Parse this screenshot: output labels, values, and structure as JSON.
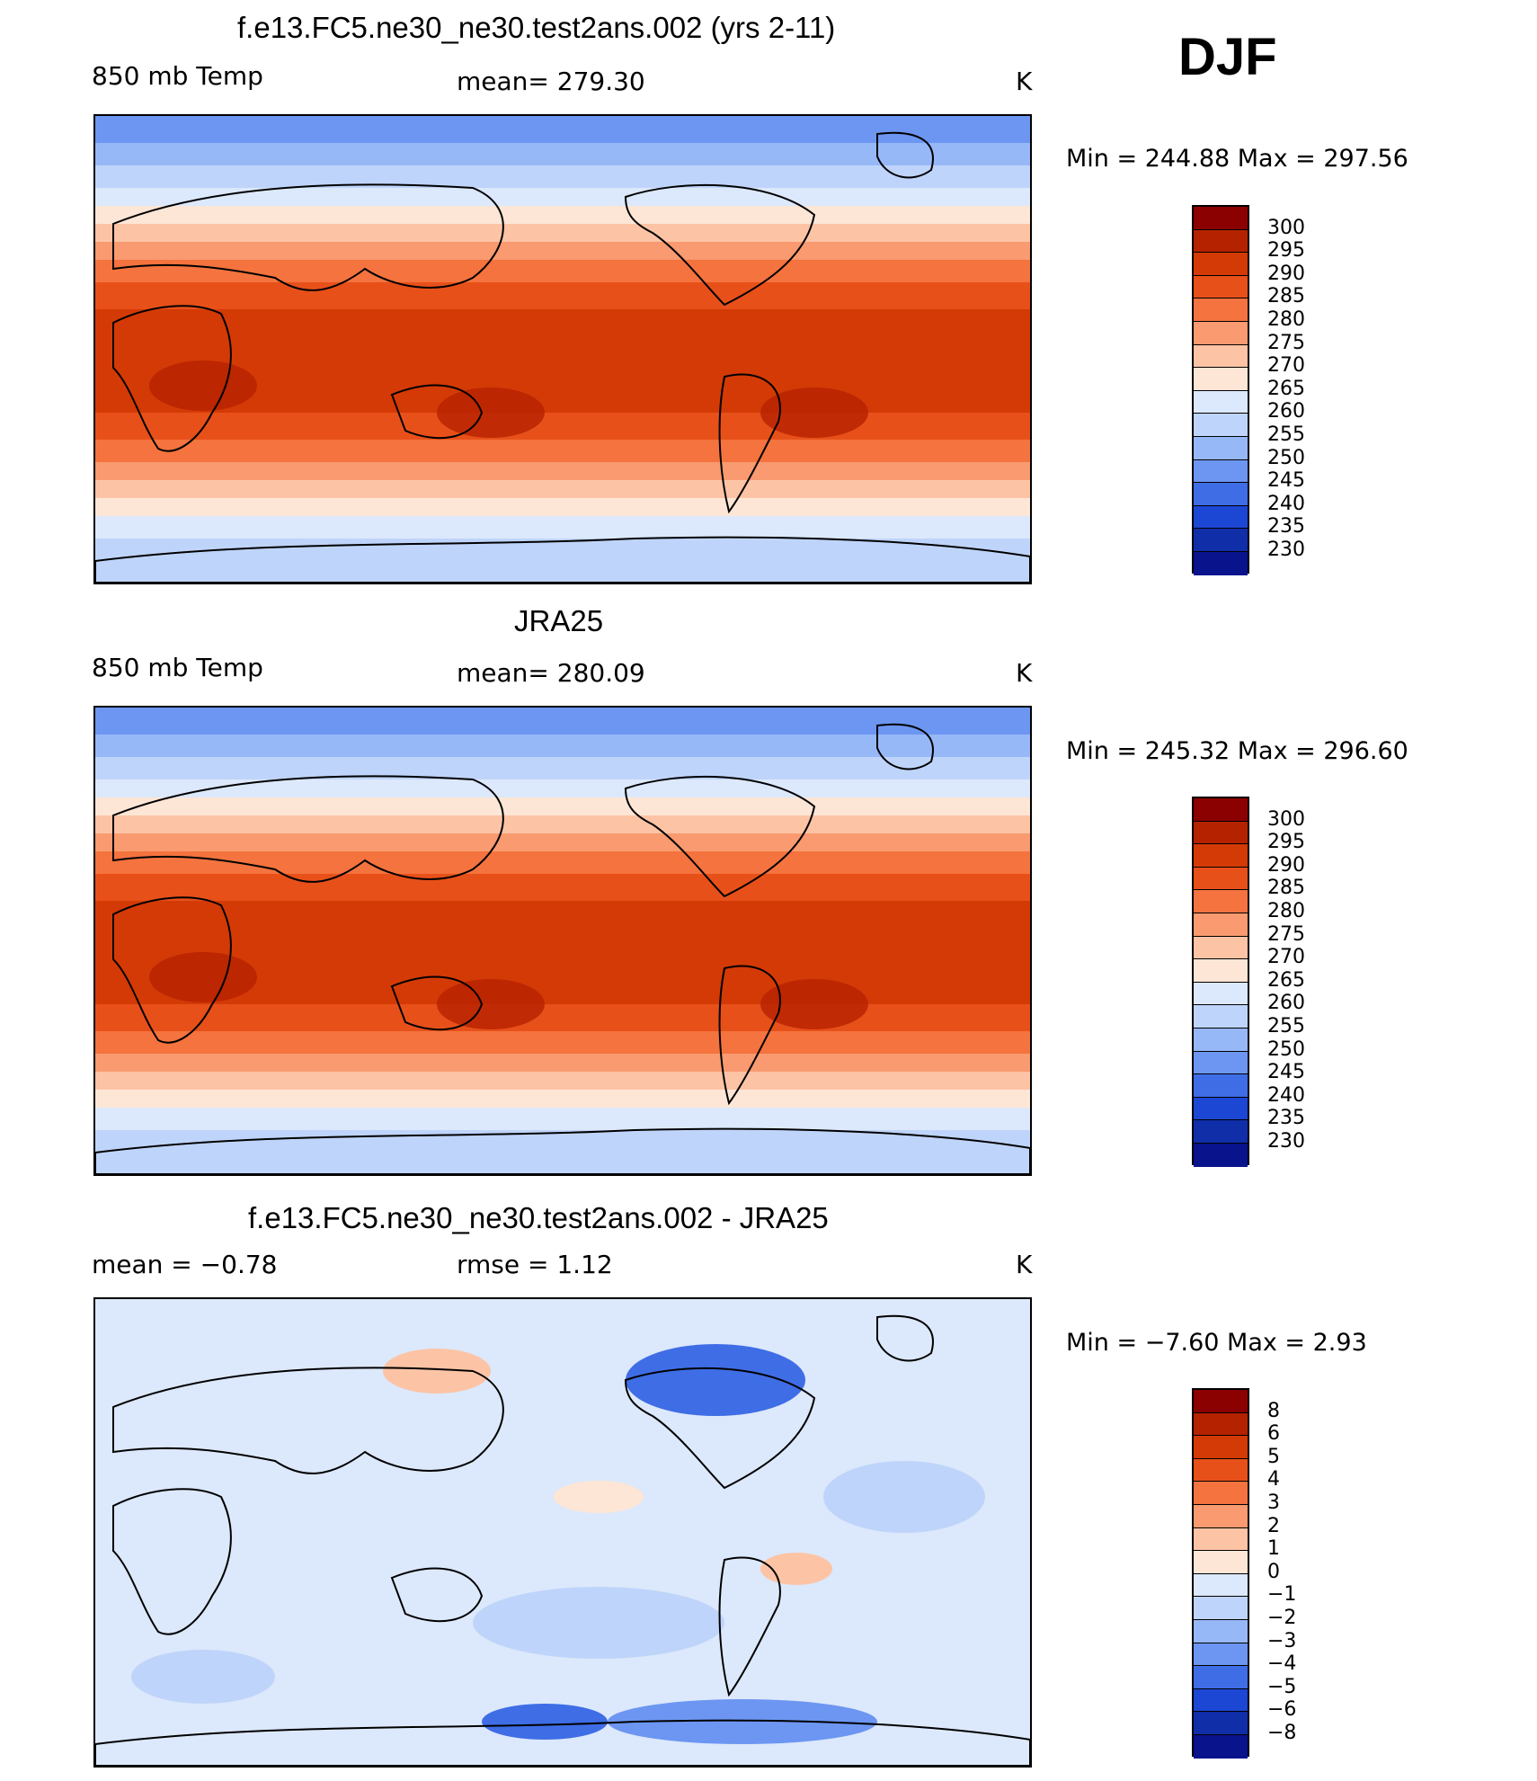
{
  "season": "DJF",
  "panels": [
    {
      "title": "f.e13.FC5.ne30_ne30.test2ans.002 (yrs 2-11)",
      "left_label": "850 mb Temp",
      "center_label": "mean=  279.30",
      "units": "K",
      "minmax": "Min  =  244.88  Max  =  297.56",
      "kind": "abs",
      "colorbar": {
        "labels": [
          "300",
          "295",
          "290",
          "285",
          "280",
          "275",
          "270",
          "265",
          "260",
          "255",
          "250",
          "245",
          "240",
          "235",
          "230"
        ],
        "colors": [
          "#8b0000",
          "#b52200",
          "#d43a06",
          "#e8501a",
          "#f4733e",
          "#f99a70",
          "#fcc4a5",
          "#fde6d6",
          "#dce8fb",
          "#bfd4fa",
          "#97b8f7",
          "#6d96f2",
          "#3f6de6",
          "#1c46d4",
          "#0f2ea8",
          "#08138c"
        ]
      }
    },
    {
      "title": "JRA25",
      "left_label": "850 mb Temp",
      "center_label": "mean=  280.09",
      "units": "K",
      "minmax": "Min  =  245.32  Max  =  296.60",
      "kind": "abs",
      "colorbar": {
        "labels": [
          "300",
          "295",
          "290",
          "285",
          "280",
          "275",
          "270",
          "265",
          "260",
          "255",
          "250",
          "245",
          "240",
          "235",
          "230"
        ],
        "colors": [
          "#8b0000",
          "#b52200",
          "#d43a06",
          "#e8501a",
          "#f4733e",
          "#f99a70",
          "#fcc4a5",
          "#fde6d6",
          "#dce8fb",
          "#bfd4fa",
          "#97b8f7",
          "#6d96f2",
          "#3f6de6",
          "#1c46d4",
          "#0f2ea8",
          "#08138c"
        ]
      }
    },
    {
      "title": "f.e13.FC5.ne30_ne30.test2ans.002 - JRA25",
      "left_label": "mean  =     −0.78",
      "center_label": "rmse  =     1.12",
      "units": "K",
      "minmax": "Min  =    −7.60  Max  =     2.93",
      "kind": "diff",
      "colorbar": {
        "labels": [
          "8",
          "6",
          "5",
          "4",
          "3",
          "2",
          "1",
          "0",
          "−1",
          "−2",
          "−3",
          "−4",
          "−5",
          "−6",
          "−8"
        ],
        "colors": [
          "#8b0000",
          "#b52200",
          "#d43a06",
          "#e8501a",
          "#f4733e",
          "#f99a70",
          "#fcc4a5",
          "#fde6d6",
          "#dce8fb",
          "#bfd4fa",
          "#97b8f7",
          "#6d96f2",
          "#3f6de6",
          "#1c46d4",
          "#0f2ea8",
          "#08138c"
        ]
      }
    }
  ]
}
